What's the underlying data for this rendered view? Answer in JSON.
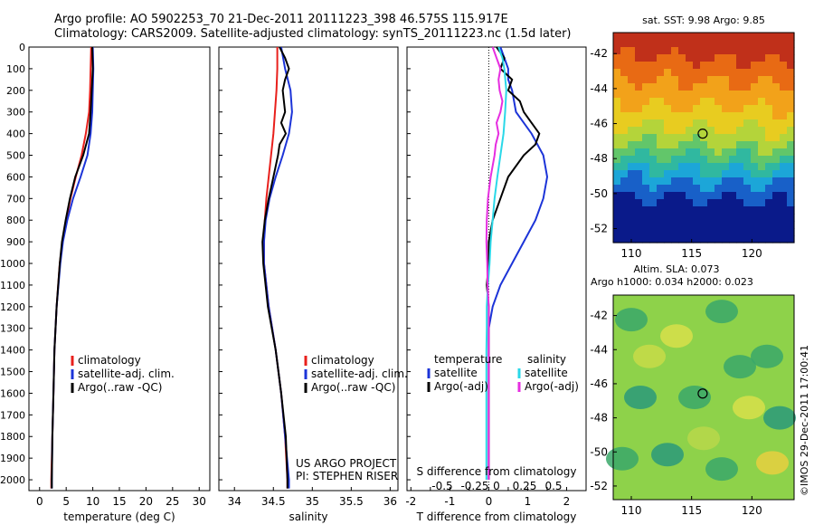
{
  "header": {
    "line1": "Argo profile: AO 5902253_70 21-Dec-2011 20111223_398 46.575S 115.917E",
    "line2": "Climatology: CARS2009. Satellite-adjusted climatology: synTS_20111223.nc (1.5d later)"
  },
  "credit": "©IMOS 29-Dec-2011 17:00:41",
  "colors": {
    "red": "#e8201c",
    "blue": "#1c34d8",
    "black": "#000000",
    "cyan": "#2ad8e8",
    "magenta": "#e62ee0"
  },
  "chart_data": [
    {
      "type": "line",
      "xlabel": "temperature (deg C)",
      "ylim": [
        0,
        2050
      ],
      "xlim": [
        -2,
        32
      ],
      "xticks": [
        0,
        5,
        10,
        15,
        20,
        25,
        30
      ],
      "yticks": [
        0,
        100,
        200,
        300,
        400,
        500,
        600,
        700,
        800,
        900,
        1000,
        1100,
        1200,
        1300,
        1400,
        1500,
        1600,
        1700,
        1800,
        1900,
        2000
      ],
      "legend": [
        "climatology",
        "satellite-adj. clim.",
        "Argo(..raw -QC)"
      ],
      "series": [
        {
          "name": "climatology",
          "color": "red",
          "depth": [
            0,
            100,
            200,
            300,
            400,
            500,
            600,
            700,
            800,
            900,
            1000,
            1200,
            1400,
            1600,
            1800,
            2000,
            2040
          ],
          "values": [
            9.7,
            9.6,
            9.5,
            9.3,
            8.7,
            7.9,
            6.8,
            5.8,
            5.0,
            4.3,
            3.8,
            3.2,
            2.8,
            2.6,
            2.4,
            2.2,
            2.2
          ]
        },
        {
          "name": "satellite-adj. clim.",
          "color": "blue",
          "depth": [
            0,
            100,
            200,
            300,
            400,
            500,
            600,
            700,
            800,
            900,
            1000,
            1200,
            1400,
            1600,
            1800,
            2000,
            2040
          ],
          "values": [
            10.0,
            10.1,
            10.0,
            9.9,
            9.6,
            9.0,
            7.7,
            6.3,
            5.2,
            4.4,
            3.9,
            3.2,
            2.8,
            2.6,
            2.4,
            2.3,
            2.3
          ]
        },
        {
          "name": "Argo(..raw -QC)",
          "color": "black",
          "depth": [
            0,
            100,
            200,
            300,
            400,
            500,
            600,
            700,
            800,
            900,
            1000,
            1200,
            1400,
            1600,
            1800,
            2000,
            2040
          ],
          "values": [
            9.9,
            10.0,
            9.8,
            9.6,
            9.3,
            8.2,
            6.7,
            5.7,
            4.9,
            4.2,
            3.8,
            3.2,
            2.8,
            2.6,
            2.4,
            2.3,
            2.3
          ]
        }
      ]
    },
    {
      "type": "line",
      "xlabel": "salinity",
      "ylim": [
        0,
        2050
      ],
      "xlim": [
        33.8,
        36.1
      ],
      "xticks": [
        34,
        34.5,
        35,
        35.5,
        36
      ],
      "legend": [
        "climatology",
        "satellite-adj. clim.",
        "Argo(..raw -QC)"
      ],
      "annotation": [
        "US ARGO PROJECT",
        "PI: STEPHEN RISER"
      ],
      "series": [
        {
          "name": "climatology",
          "color": "red",
          "depth": [
            0,
            100,
            200,
            300,
            400,
            500,
            600,
            700,
            800,
            900,
            1000,
            1200,
            1400,
            1600,
            1800,
            2000,
            2040
          ],
          "values": [
            34.55,
            34.55,
            34.54,
            34.52,
            34.5,
            34.47,
            34.44,
            34.41,
            34.39,
            34.38,
            34.38,
            34.44,
            34.53,
            34.6,
            34.65,
            34.68,
            34.68
          ]
        },
        {
          "name": "satellite-adj. clim.",
          "color": "blue",
          "depth": [
            0,
            100,
            200,
            300,
            400,
            500,
            600,
            700,
            800,
            900,
            1000,
            1200,
            1400,
            1600,
            1800,
            2000,
            2040
          ],
          "values": [
            34.6,
            34.65,
            34.72,
            34.74,
            34.7,
            34.62,
            34.53,
            34.45,
            34.4,
            34.38,
            34.38,
            34.44,
            34.53,
            34.6,
            34.65,
            34.7,
            34.7
          ]
        },
        {
          "name": "Argo(..raw -QC)",
          "color": "black",
          "depth": [
            0,
            50,
            100,
            150,
            200,
            300,
            350,
            400,
            450,
            500,
            600,
            700,
            800,
            900,
            1000,
            1200,
            1400,
            1600,
            1800,
            2000,
            2040
          ],
          "values": [
            34.58,
            34.65,
            34.7,
            34.65,
            34.62,
            34.65,
            34.6,
            34.66,
            34.58,
            34.56,
            34.5,
            34.44,
            34.39,
            34.36,
            34.37,
            34.43,
            34.53,
            34.6,
            34.66,
            34.68,
            34.68
          ]
        }
      ]
    },
    {
      "type": "line",
      "xlabel": "T difference from climatology",
      "xlabel2": "S difference from climatology",
      "ylim": [
        0,
        2050
      ],
      "xlim": [
        -2.1,
        2.5
      ],
      "xticks": [
        -2,
        -1.5,
        -1,
        -0.5,
        0,
        0.5,
        1,
        1.5,
        2
      ],
      "xtick_labels": [
        "-2",
        "",
        "-1",
        "",
        "0",
        "",
        "1",
        "",
        "2"
      ],
      "sticks": [
        "-0.5",
        "-0.25",
        "0",
        "0.25",
        "0.5"
      ],
      "legend_left": [
        "temperature",
        "satellite",
        "Argo(-adj)"
      ],
      "legend_right": [
        "salinity",
        "satellite",
        "Argo(-adj)"
      ],
      "series": [
        {
          "name": "satellite",
          "color": "blue",
          "depth": [
            0,
            50,
            100,
            150,
            200,
            300,
            400,
            500,
            600,
            700,
            800,
            900,
            1000,
            1100,
            1200,
            1300,
            1400,
            1500,
            1600,
            1800,
            2000
          ],
          "values": [
            0.3,
            0.4,
            0.5,
            0.5,
            0.6,
            0.7,
            1.1,
            1.4,
            1.5,
            1.4,
            1.2,
            0.9,
            0.6,
            0.3,
            0.1,
            0.0,
            0.0,
            0.0,
            0.0,
            0.0,
            0.0
          ]
        },
        {
          "name": "Argo(-adj)",
          "color": "black",
          "depth": [
            0,
            50,
            100,
            150,
            200,
            250,
            300,
            350,
            400,
            450,
            500,
            600,
            700,
            800,
            900,
            1000,
            1100,
            1200,
            1400,
            1600,
            1800,
            2000
          ],
          "values": [
            0.2,
            0.4,
            0.3,
            0.6,
            0.5,
            0.8,
            0.9,
            1.1,
            1.3,
            1.2,
            0.9,
            0.5,
            0.3,
            0.1,
            0.0,
            0.0,
            -0.05,
            0.0,
            0.0,
            0.0,
            0.0,
            0.0
          ]
        },
        {
          "name": "satellite (salinity)",
          "color": "cyan",
          "depth": [
            0,
            50,
            100,
            200,
            300,
            400,
            500,
            600,
            700,
            800,
            900,
            1000,
            1100,
            1200,
            1300,
            1400,
            1500,
            1600,
            1800,
            2000
          ],
          "values": [
            0.25,
            0.35,
            0.4,
            0.45,
            0.42,
            0.38,
            0.3,
            0.22,
            0.15,
            0.1,
            0.05,
            0.02,
            -0.02,
            -0.05,
            -0.05,
            -0.06,
            -0.06,
            -0.06,
            -0.06,
            -0.06
          ]
        },
        {
          "name": "Argo(-adj) (salinity)",
          "color": "magenta",
          "depth": [
            0,
            50,
            100,
            150,
            200,
            250,
            300,
            350,
            400,
            450,
            500,
            600,
            700,
            800,
            900,
            1000,
            1100,
            1200,
            1400,
            1600,
            1800,
            2000
          ],
          "values": [
            0.1,
            0.2,
            0.3,
            0.25,
            0.28,
            0.35,
            0.3,
            0.2,
            0.25,
            0.18,
            0.15,
            0.05,
            -0.02,
            -0.05,
            -0.06,
            -0.04,
            -0.03,
            0.0,
            0.0,
            0.0,
            0.0,
            0.0
          ]
        }
      ]
    },
    {
      "type": "heatmap",
      "title": "sat. SST: 9.98 Argo: 9.85",
      "xticks": [
        110,
        115,
        120
      ],
      "yticks": [
        -42,
        -44,
        -46,
        -48,
        -50,
        -52
      ],
      "xlim": [
        108.5,
        123.5
      ],
      "ylim": [
        -52.8,
        -40.8
      ],
      "marker": [
        115.917,
        -46.575
      ]
    },
    {
      "type": "heatmap",
      "title": "Altim. SLA: 0.073",
      "subtitle": "Argo h1000: 0.034 h2000: 0.023",
      "xticks": [
        110,
        115,
        120
      ],
      "yticks": [
        -42,
        -44,
        -46,
        -48,
        -50,
        -52
      ],
      "xlim": [
        108.5,
        123.5
      ],
      "ylim": [
        -52.8,
        -40.8
      ],
      "marker": [
        115.917,
        -46.575
      ]
    }
  ]
}
